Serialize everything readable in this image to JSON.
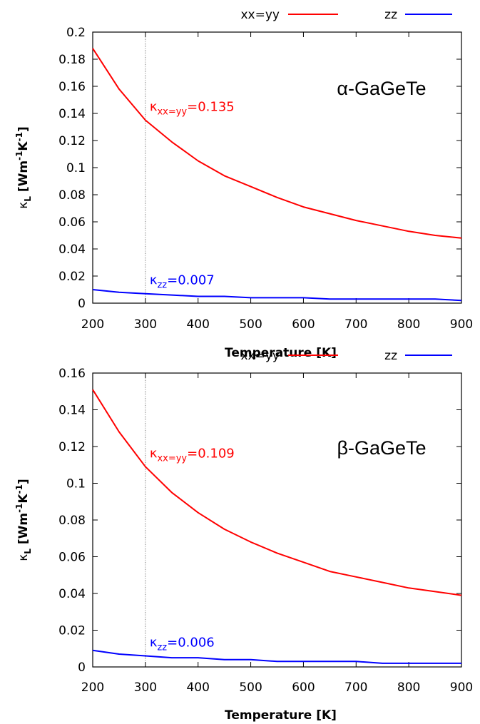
{
  "chart_data": [
    {
      "type": "line",
      "material_label": "α-GaGeTe",
      "xlabel": "Temperature [K]",
      "ylabel": "κL [Wm-1K-1]",
      "ylabel_parts": {
        "kappa": "κ",
        "sub": "L",
        "open": " [Wm",
        "exp1": "-1",
        "mid": "K",
        "exp2": "-1",
        "close": "]"
      },
      "xlim": [
        200,
        900
      ],
      "ylim": [
        0,
        0.2
      ],
      "xticks": [
        200,
        300,
        400,
        500,
        600,
        700,
        800,
        900
      ],
      "yticks": [
        0,
        0.02,
        0.04,
        0.06,
        0.08,
        0.1,
        0.12,
        0.14,
        0.16,
        0.18,
        0.2
      ],
      "ytick_labels": [
        "0",
        "0.02",
        "0.04",
        "0.06",
        "0.08",
        "0.1",
        "0.12",
        "0.14",
        "0.16",
        "0.18",
        "0.2"
      ],
      "vline_x": 300,
      "legend": {
        "position": "top"
      },
      "x": [
        200,
        250,
        300,
        350,
        400,
        450,
        500,
        550,
        600,
        650,
        700,
        750,
        800,
        850,
        900
      ],
      "series": [
        {
          "name": "xx=yy",
          "color": "#ff0000",
          "values": [
            0.188,
            0.158,
            0.135,
            0.119,
            0.105,
            0.094,
            0.086,
            0.078,
            0.071,
            0.066,
            0.061,
            0.057,
            0.053,
            0.05,
            0.048
          ]
        },
        {
          "name": "zz",
          "color": "#0000ff",
          "values": [
            0.01,
            0.008,
            0.007,
            0.006,
            0.005,
            0.005,
            0.004,
            0.004,
            0.004,
            0.003,
            0.003,
            0.003,
            0.003,
            0.003,
            0.002
          ]
        }
      ],
      "annotations": [
        {
          "series": "xx=yy",
          "sub": "xx=yy",
          "value": "=0.135",
          "color": "#ff0000"
        },
        {
          "series": "zz",
          "sub": "zz",
          "value": "=0.007",
          "color": "#0000ff"
        }
      ]
    },
    {
      "type": "line",
      "material_label": "β-GaGeTe",
      "xlabel": "Temperature [K]",
      "ylabel": "κL [Wm-1K-1]",
      "ylabel_parts": {
        "kappa": "κ",
        "sub": "L",
        "open": " [Wm",
        "exp1": "-1",
        "mid": "K",
        "exp2": "-1",
        "close": "]"
      },
      "xlim": [
        200,
        900
      ],
      "ylim": [
        0,
        0.16
      ],
      "xticks": [
        200,
        300,
        400,
        500,
        600,
        700,
        800,
        900
      ],
      "yticks": [
        0,
        0.02,
        0.04,
        0.06,
        0.08,
        0.1,
        0.12,
        0.14,
        0.16
      ],
      "ytick_labels": [
        "0",
        "0.02",
        "0.04",
        "0.06",
        "0.08",
        "0.1",
        "0.12",
        "0.14",
        "0.16"
      ],
      "vline_x": 300,
      "legend": {
        "position": "top"
      },
      "x": [
        200,
        250,
        300,
        350,
        400,
        450,
        500,
        550,
        600,
        650,
        700,
        750,
        800,
        850,
        900
      ],
      "series": [
        {
          "name": "xx=yy",
          "color": "#ff0000",
          "values": [
            0.151,
            0.128,
            0.109,
            0.095,
            0.084,
            0.075,
            0.068,
            0.062,
            0.057,
            0.052,
            0.049,
            0.046,
            0.043,
            0.041,
            0.039
          ]
        },
        {
          "name": "zz",
          "color": "#0000ff",
          "values": [
            0.009,
            0.007,
            0.006,
            0.005,
            0.005,
            0.004,
            0.004,
            0.003,
            0.003,
            0.003,
            0.003,
            0.002,
            0.002,
            0.002,
            0.002
          ]
        }
      ],
      "annotations": [
        {
          "series": "xx=yy",
          "sub": "xx=yy",
          "value": "=0.109",
          "color": "#ff0000"
        },
        {
          "series": "zz",
          "sub": "zz",
          "value": "=0.006",
          "color": "#0000ff"
        }
      ]
    }
  ]
}
